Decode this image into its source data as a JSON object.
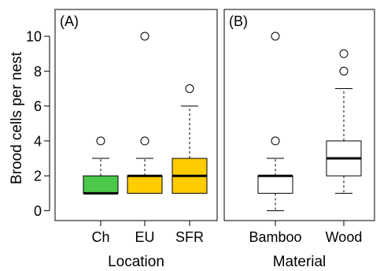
{
  "chart_data": {
    "type": "boxplot",
    "ylabel": "Brood cells per nest",
    "ylim": [
      0,
      11.4
    ],
    "yticks": [
      0,
      2,
      4,
      6,
      8,
      10
    ],
    "panels": [
      {
        "panel_label": "(A)",
        "xlabel": "Location",
        "boxes": [
          {
            "category": "Ch",
            "color": "#4cc84a",
            "whisker_low": 1,
            "q1": 1,
            "median": 1,
            "q3": 2,
            "whisker_high": 3,
            "outliers": [
              4
            ]
          },
          {
            "category": "EU",
            "color": "#ffcc00",
            "whisker_low": 1,
            "q1": 1,
            "median": 2,
            "q3": 2,
            "whisker_high": 3,
            "outliers": [
              4,
              10
            ]
          },
          {
            "category": "SFR",
            "color": "#ffcc00",
            "whisker_low": 1,
            "q1": 1,
            "median": 2,
            "q3": 3,
            "whisker_high": 6,
            "outliers": [
              7
            ]
          }
        ]
      },
      {
        "panel_label": "(B)",
        "xlabel": "Material",
        "boxes": [
          {
            "category": "Bamboo",
            "color": "#ffffff",
            "whisker_low": 0,
            "q1": 1,
            "median": 2,
            "q3": 2,
            "whisker_high": 3,
            "outliers": [
              4,
              10
            ]
          },
          {
            "category": "Wood",
            "color": "#ffffff",
            "whisker_low": 1,
            "q1": 2,
            "median": 3,
            "q3": 4,
            "whisker_high": 7,
            "outliers": [
              8,
              9
            ]
          }
        ]
      }
    ]
  }
}
